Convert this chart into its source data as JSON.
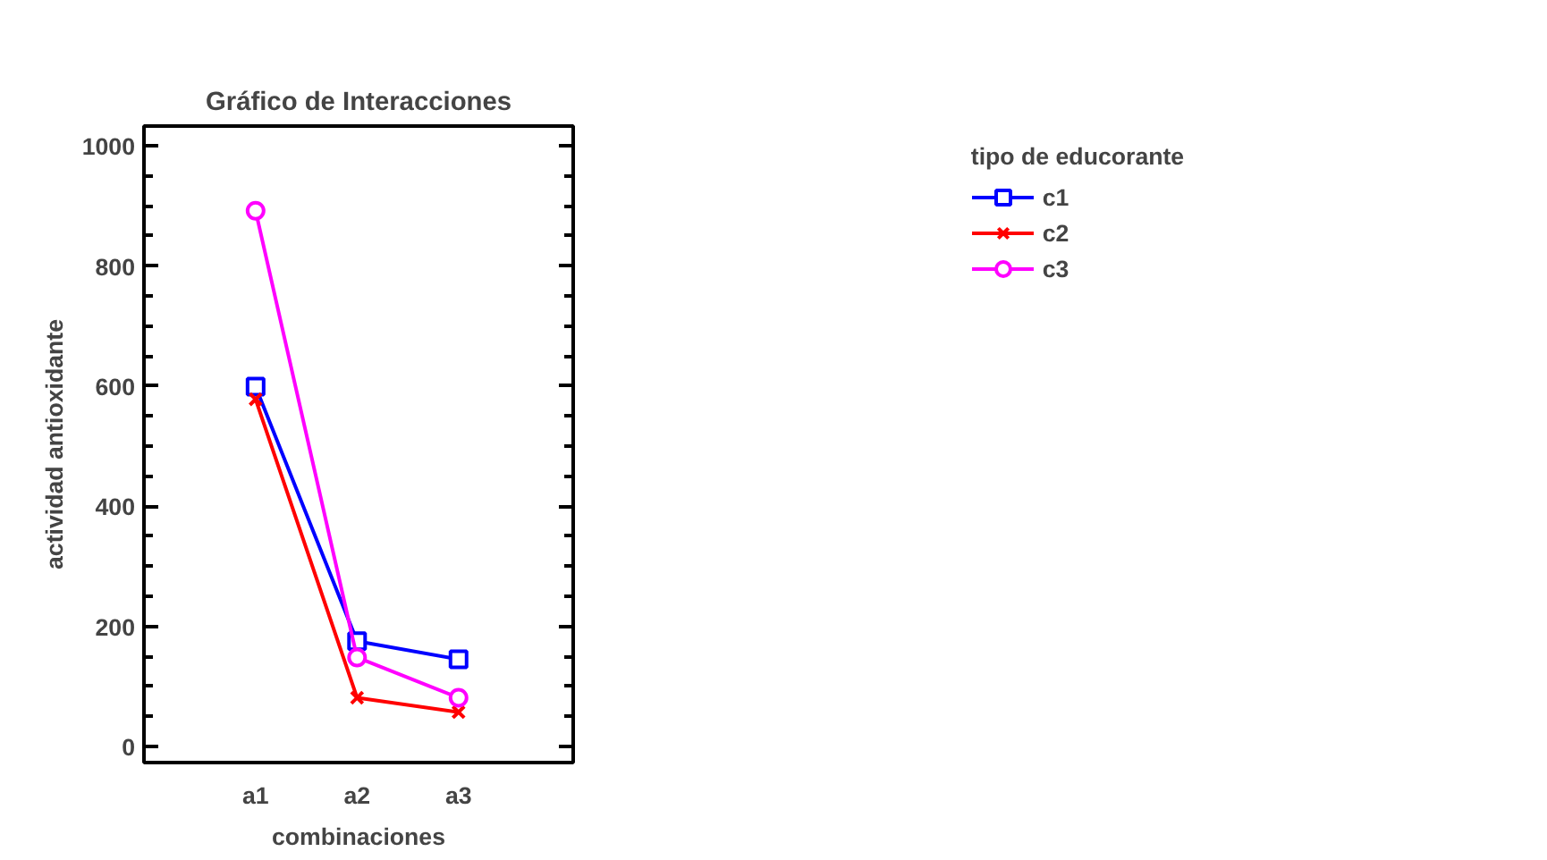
{
  "chart_data": {
    "type": "line",
    "title": "Gráfico de Interacciones",
    "xlabel": "combinaciones",
    "ylabel": "actividad antioxidante",
    "legend_title": "tipo de educorante",
    "legend": "right",
    "categories": [
      "a1",
      "a2",
      "a3"
    ],
    "series": [
      {
        "name": "c1",
        "color": "#0000ff",
        "marker": "square",
        "values": [
          599,
          175,
          145
        ]
      },
      {
        "name": "c2",
        "color": "#ff0000",
        "marker": "cross",
        "values": [
          578,
          81,
          57
        ]
      },
      {
        "name": "c3",
        "color": "#ff00ff",
        "marker": "circle",
        "values": [
          892,
          148,
          81
        ]
      }
    ],
    "ylim": [
      -27,
      1033
    ],
    "yticks": [
      0,
      {
        "value": 50,
        "label": null
      },
      {
        "value": 100,
        "label": null
      },
      {
        "value": 150,
        "label": null
      },
      200,
      {
        "value": 250,
        "label": null
      },
      {
        "value": 300,
        "label": null
      },
      {
        "value": 350,
        "label": null
      },
      400,
      {
        "value": 450,
        "label": null
      },
      {
        "value": 500,
        "label": null
      },
      {
        "value": 550,
        "label": null
      },
      600,
      {
        "value": 650,
        "label": null
      },
      {
        "value": 700,
        "label": null
      },
      {
        "value": 750,
        "label": null
      },
      800,
      {
        "value": 850,
        "label": null
      },
      {
        "value": 900,
        "label": null
      },
      {
        "value": 950,
        "label": null
      },
      1000
    ],
    "grid": false
  }
}
